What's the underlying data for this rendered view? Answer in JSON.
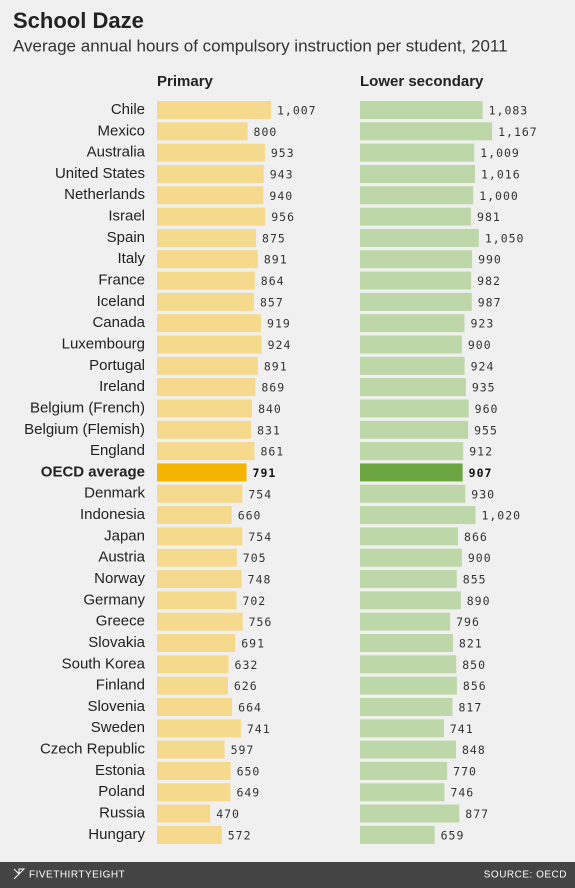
{
  "chart_data": {
    "type": "paired-bar",
    "title": "School Daze",
    "subtitle": "Average annual hours of compulsory instruction per student, 2011",
    "categories": [
      "Chile",
      "Mexico",
      "Australia",
      "United States",
      "Netherlands",
      "Israel",
      "Spain",
      "Italy",
      "France",
      "Iceland",
      "Canada",
      "Luxembourg",
      "Portugal",
      "Ireland",
      "Belgium (French)",
      "Belgium (Flemish)",
      "England",
      "OECD average",
      "Denmark",
      "Indonesia",
      "Japan",
      "Austria",
      "Norway",
      "Germany",
      "Greece",
      "Slovakia",
      "South Korea",
      "Finland",
      "Slovenia",
      "Sweden",
      "Czech Republic",
      "Estonia",
      "Poland",
      "Russia",
      "Hungary"
    ],
    "highlight_index": 17,
    "series": [
      {
        "name": "Primary",
        "color": "#f5d98c",
        "highlight_color": "#f5b400",
        "values": [
          1007,
          800,
          953,
          943,
          940,
          956,
          875,
          891,
          864,
          857,
          919,
          924,
          891,
          869,
          840,
          831,
          861,
          791,
          754,
          660,
          754,
          705,
          748,
          702,
          756,
          691,
          632,
          626,
          664,
          741,
          597,
          650,
          649,
          470,
          572
        ],
        "value_labels": [
          "1,007",
          "800",
          "953",
          "943",
          "940",
          "956",
          "875",
          "891",
          "864",
          "857",
          "919",
          "924",
          "891",
          "869",
          "840",
          "831",
          "861",
          "791",
          "754",
          "660",
          "754",
          "705",
          "748",
          "702",
          "756",
          "691",
          "632",
          "626",
          "664",
          "741",
          "597",
          "650",
          "649",
          "470",
          "572"
        ]
      },
      {
        "name": "Lower secondary",
        "color": "#bdd7a8",
        "highlight_color": "#6ca641",
        "values": [
          1083,
          1167,
          1009,
          1016,
          1000,
          981,
          1050,
          990,
          982,
          987,
          923,
          900,
          924,
          935,
          960,
          955,
          912,
          907,
          930,
          1020,
          866,
          900,
          855,
          890,
          796,
          821,
          850,
          856,
          817,
          741,
          848,
          770,
          746,
          877,
          659
        ],
        "value_labels": [
          "1,083",
          "1,167",
          "1,009",
          "1,016",
          "1,000",
          "981",
          "1,050",
          "990",
          "982",
          "987",
          "923",
          "900",
          "924",
          "935",
          "960",
          "955",
          "912",
          "907",
          "930",
          "1,020",
          "866",
          "900",
          "855",
          "890",
          "796",
          "821",
          "850",
          "856",
          "817",
          "741",
          "848",
          "770",
          "746",
          "877",
          "659"
        ]
      }
    ]
  },
  "footer": {
    "brand": "FIVETHIRTYEIGHT",
    "source": "SOURCE: OECD"
  }
}
